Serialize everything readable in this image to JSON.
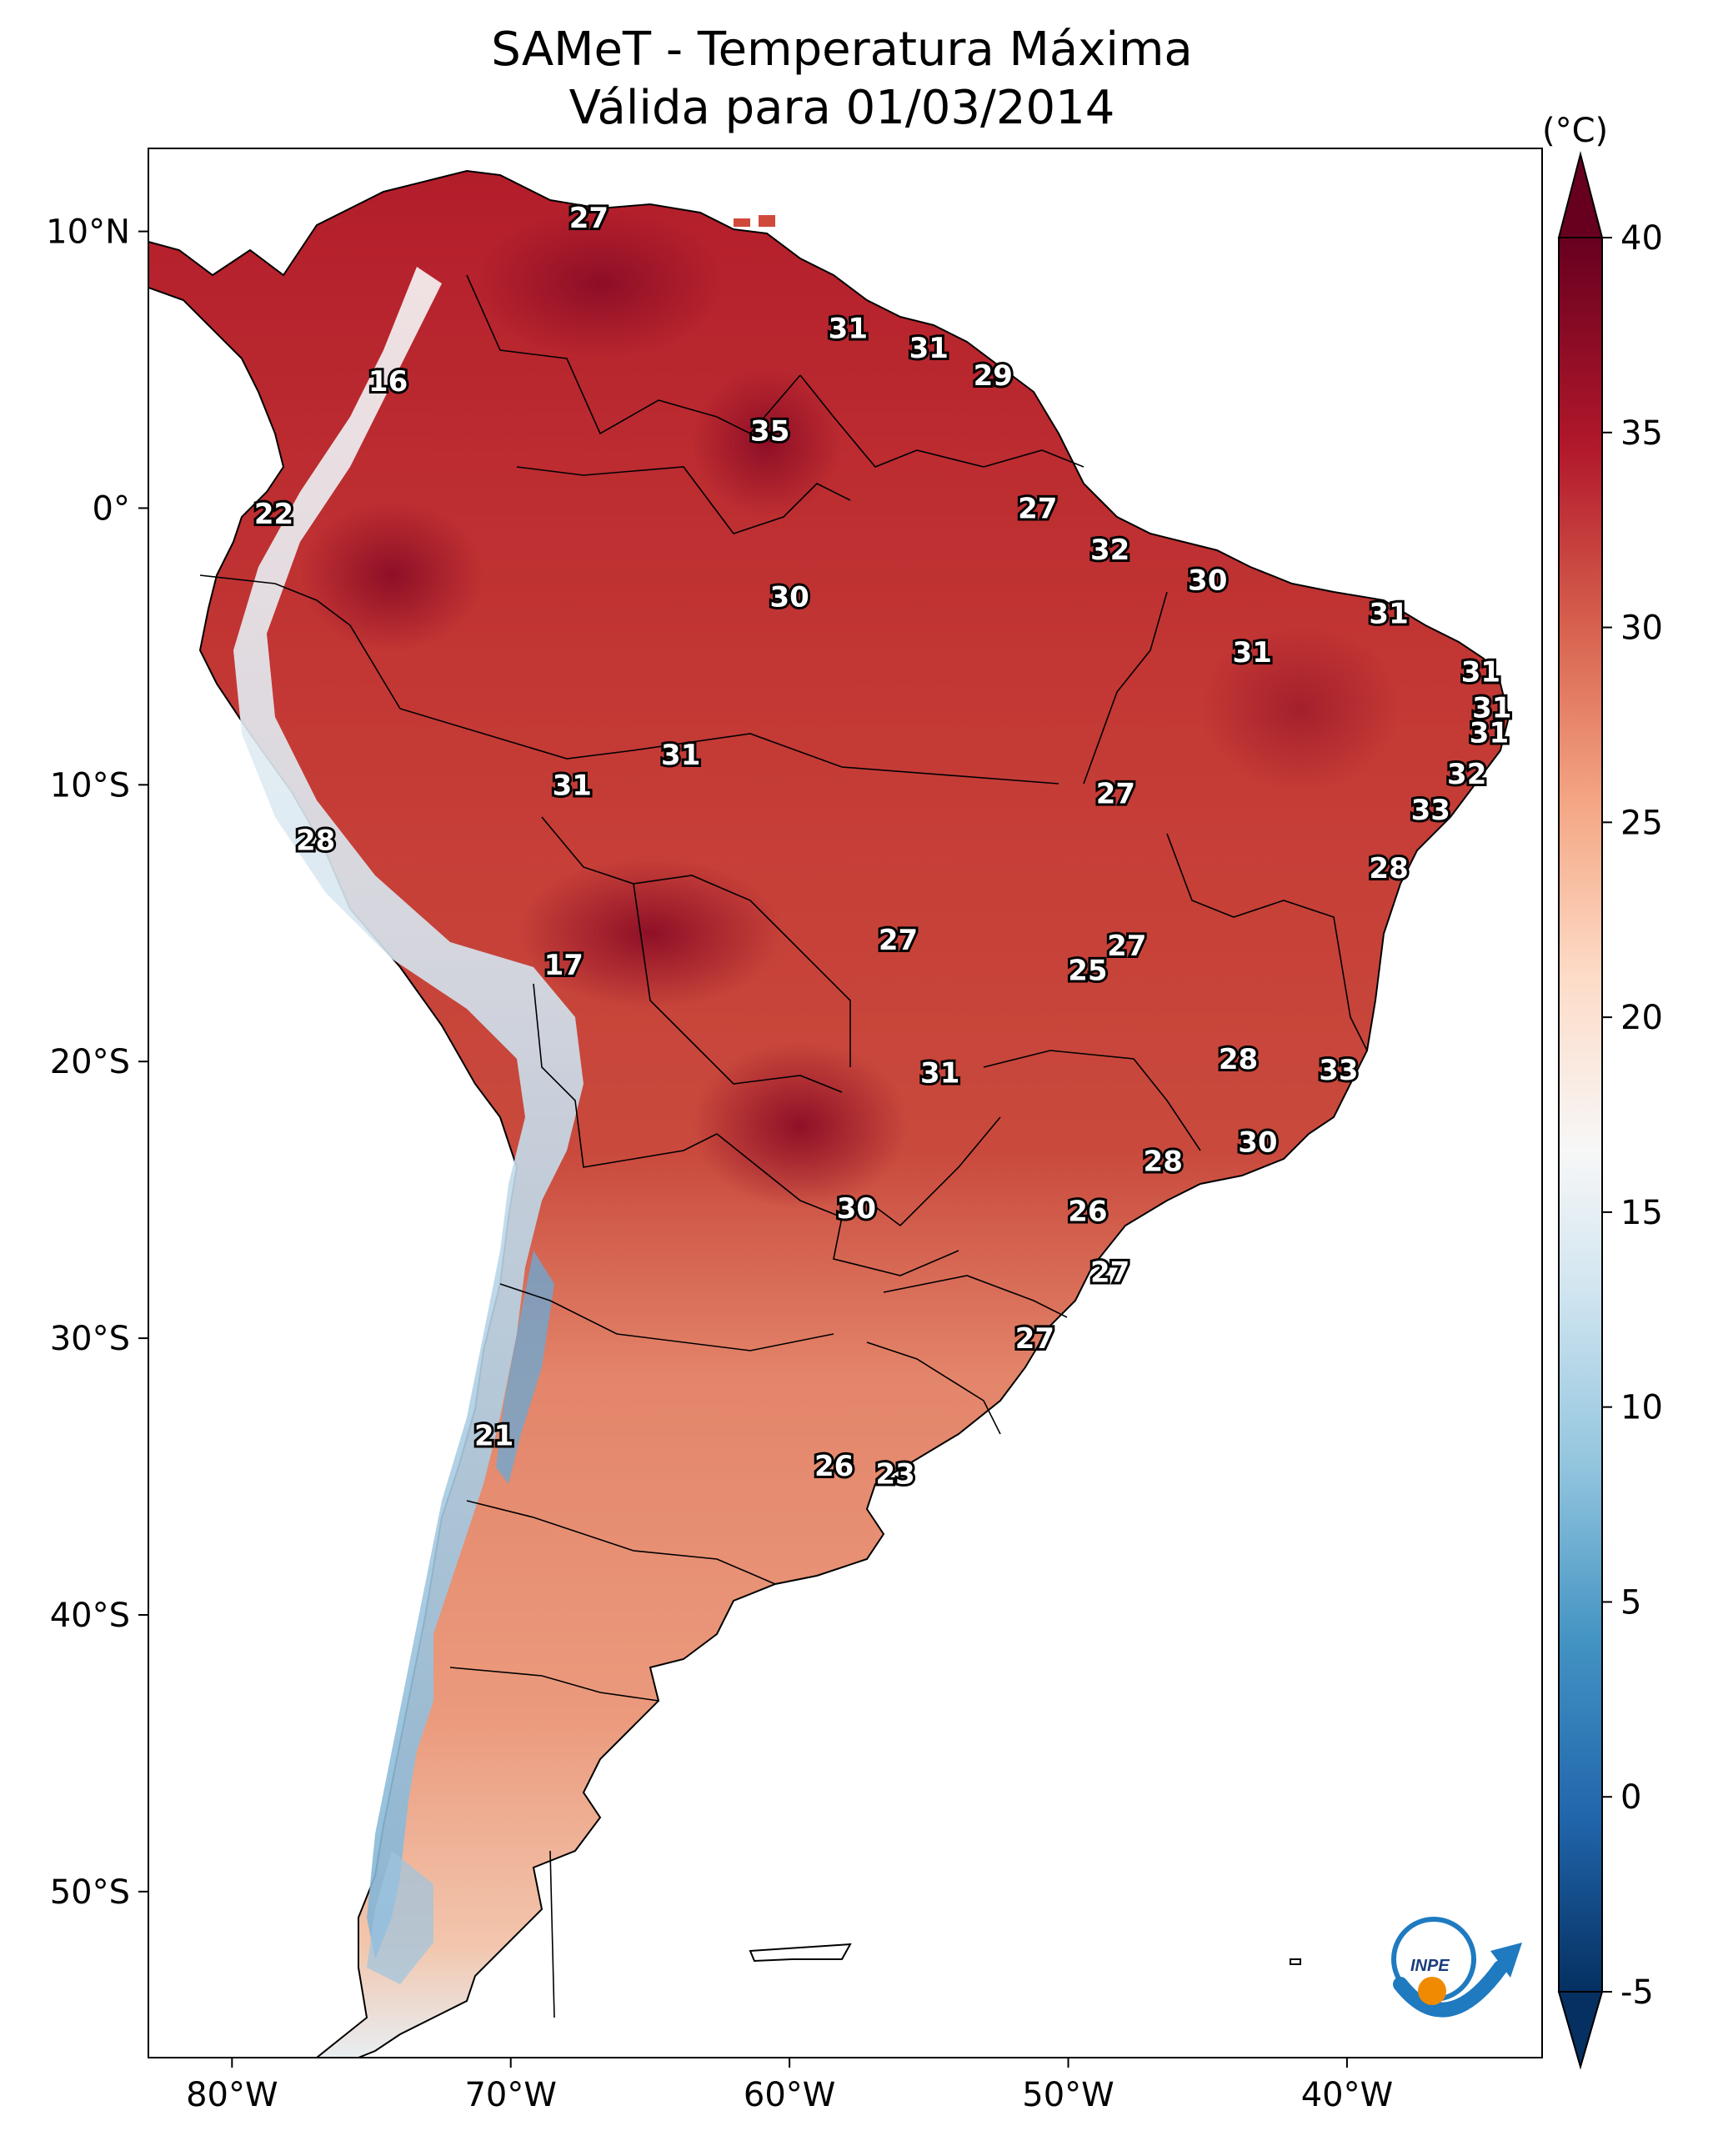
{
  "title": {
    "line1": "SAMeT - Temperatura Máxima",
    "line2": "Válida para 01/03/2014"
  },
  "axes": {
    "lat_ticks": [
      "10°N",
      "0°",
      "10°S",
      "20°S",
      "30°S",
      "40°S",
      "50°S"
    ],
    "lat_values": [
      10,
      0,
      -10,
      -20,
      -30,
      -40,
      -50
    ],
    "lon_ticks": [
      "80°W",
      "70°W",
      "60°W",
      "50°W",
      "40°W"
    ],
    "lon_values": [
      -80,
      -70,
      -60,
      -50,
      -40
    ],
    "lon_range": [
      -83,
      -33
    ],
    "lat_range": [
      -56,
      13
    ]
  },
  "colorbar": {
    "unit": "(°C)",
    "ticks": [
      "40",
      "35",
      "30",
      "25",
      "20",
      "15",
      "10",
      "5",
      "0",
      "-5"
    ],
    "tick_values": [
      40,
      35,
      30,
      25,
      20,
      15,
      10,
      5,
      0,
      -5
    ],
    "range": [
      -5,
      40
    ],
    "colors": [
      "#053061",
      "#2166ac",
      "#4393c3",
      "#92c5de",
      "#d1e5f0",
      "#f7f7f7",
      "#fddbc7",
      "#f4a582",
      "#d6604d",
      "#b2182b",
      "#67001f"
    ]
  },
  "logo": {
    "text": "INPE",
    "icon": "inpe-logo-icon"
  },
  "station_values": [
    {
      "value": "27",
      "lon": -67.2,
      "lat": 10.5
    },
    {
      "value": "31",
      "lon": -57.9,
      "lat": 6.5
    },
    {
      "value": "31",
      "lon": -55.0,
      "lat": 5.8
    },
    {
      "value": "29",
      "lon": -52.7,
      "lat": 4.8
    },
    {
      "value": "16",
      "lon": -74.4,
      "lat": 4.6
    },
    {
      "value": "35",
      "lon": -60.7,
      "lat": 2.8
    },
    {
      "value": "22",
      "lon": -78.5,
      "lat": -0.2
    },
    {
      "value": "27",
      "lon": -51.1,
      "lat": 0.0
    },
    {
      "value": "32",
      "lon": -48.5,
      "lat": -1.5
    },
    {
      "value": "30",
      "lon": -45.0,
      "lat": -2.6
    },
    {
      "value": "30",
      "lon": -60.0,
      "lat": -3.2
    },
    {
      "value": "31",
      "lon": -38.5,
      "lat": -3.8
    },
    {
      "value": "31",
      "lon": -43.4,
      "lat": -5.2
    },
    {
      "value": "31",
      "lon": -35.2,
      "lat": -5.9
    },
    {
      "value": "31",
      "lon": -34.8,
      "lat": -7.2
    },
    {
      "value": "31",
      "lon": -34.9,
      "lat": -8.1
    },
    {
      "value": "31",
      "lon": -63.9,
      "lat": -8.9
    },
    {
      "value": "32",
      "lon": -35.7,
      "lat": -9.6
    },
    {
      "value": "31",
      "lon": -67.8,
      "lat": -10.0
    },
    {
      "value": "27",
      "lon": -48.3,
      "lat": -10.3
    },
    {
      "value": "33",
      "lon": -37.0,
      "lat": -10.9
    },
    {
      "value": "28",
      "lon": -77.0,
      "lat": -12.0
    },
    {
      "value": "28",
      "lon": -38.5,
      "lat": -13.0
    },
    {
      "value": "27",
      "lon": -56.1,
      "lat": -15.6
    },
    {
      "value": "27",
      "lon": -47.9,
      "lat": -15.8
    },
    {
      "value": "25",
      "lon": -49.3,
      "lat": -16.7
    },
    {
      "value": "17",
      "lon": -68.1,
      "lat": -16.5
    },
    {
      "value": "28",
      "lon": -43.9,
      "lat": -19.9
    },
    {
      "value": "33",
      "lon": -40.3,
      "lat": -20.3
    },
    {
      "value": "31",
      "lon": -54.6,
      "lat": -20.4
    },
    {
      "value": "30",
      "lon": -43.2,
      "lat": -22.9
    },
    {
      "value": "28",
      "lon": -46.6,
      "lat": -23.6
    },
    {
      "value": "30",
      "lon": -57.6,
      "lat": -25.3
    },
    {
      "value": "26",
      "lon": -49.3,
      "lat": -25.4
    },
    {
      "value": "27",
      "lon": -48.5,
      "lat": -27.6
    },
    {
      "value": "27",
      "lon": -51.2,
      "lat": -30.0
    },
    {
      "value": "21",
      "lon": -70.6,
      "lat": -33.5
    },
    {
      "value": "26",
      "lon": -58.4,
      "lat": -34.6
    },
    {
      "value": "23",
      "lon": -56.2,
      "lat": -34.9
    }
  ]
}
